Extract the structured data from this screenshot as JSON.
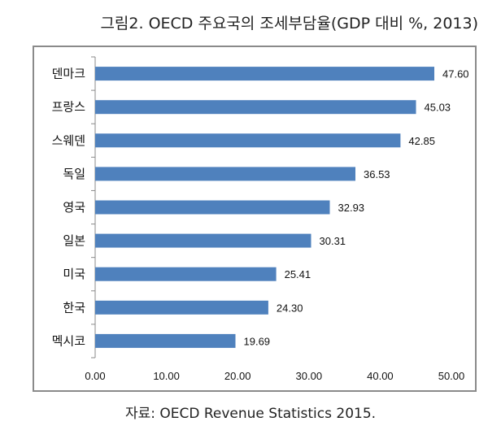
{
  "chart_data": {
    "type": "bar",
    "orientation": "horizontal",
    "title": "그림2. OECD 주요국의 조세부담율(GDP 대비 %, 2013)",
    "source": "자료:  OECD  Revenue  Statistics  2015.",
    "categories": [
      "덴마크",
      "프랑스",
      "스웨덴",
      "독일",
      "영국",
      "일본",
      "미국",
      "한국",
      "멕시코"
    ],
    "values": [
      47.6,
      45.03,
      42.85,
      36.53,
      32.93,
      30.31,
      25.41,
      24.3,
      19.69
    ],
    "value_labels": [
      "47.60",
      "45.03",
      "42.85",
      "36.53",
      "32.93",
      "30.31",
      "25.41",
      "24.30",
      "19.69"
    ],
    "xlim": [
      0,
      50
    ],
    "x_ticks": [
      "0.00",
      "10.00",
      "20.00",
      "30.00",
      "40.00",
      "50.00"
    ],
    "xlabel": "",
    "ylabel": "",
    "grid": false,
    "legend": "none",
    "bar_color": "#4f81bd"
  }
}
